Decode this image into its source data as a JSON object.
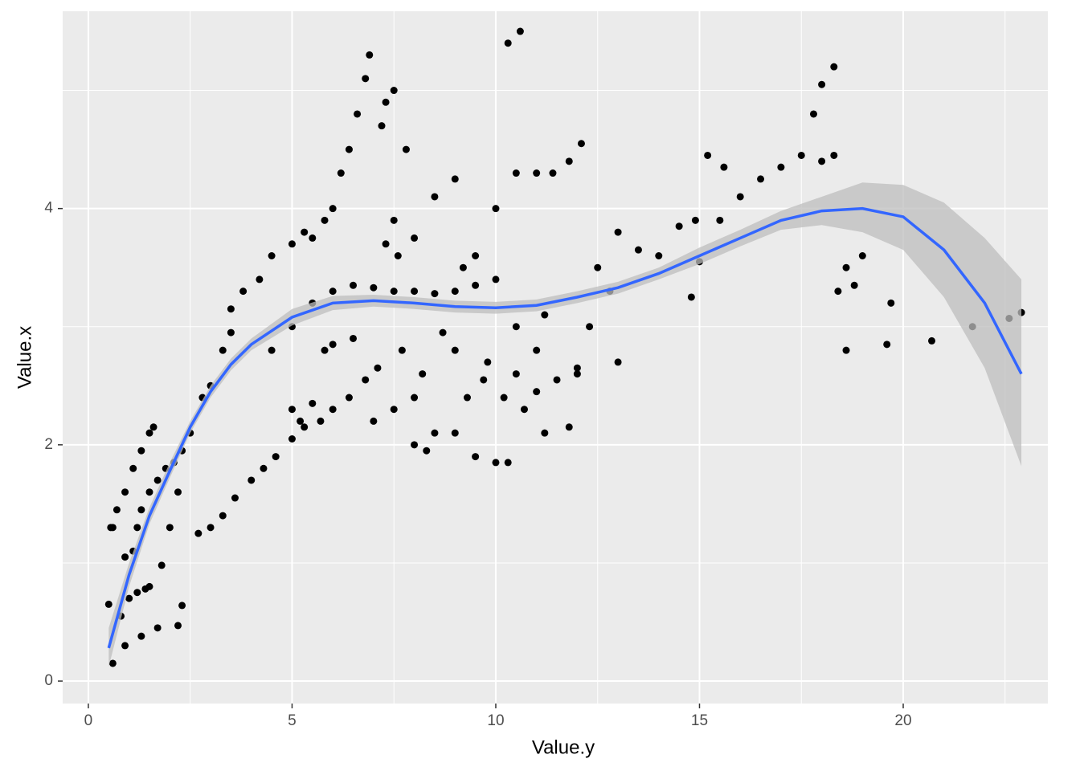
{
  "chart_data": {
    "type": "scatter",
    "x_label": "Value.y",
    "y_label": "Value.x",
    "xlim": [
      -0.63,
      23.55
    ],
    "ylim": [
      -0.19,
      5.67
    ],
    "xticks": [
      0,
      5,
      10,
      15,
      20
    ],
    "yticks": [
      0,
      2,
      4
    ],
    "x_minor_grid": [
      2.5,
      7.5,
      12.5,
      17.5,
      22.5
    ],
    "y_minor_grid": [
      1,
      3,
      5
    ],
    "grid": true,
    "panel_color": "#ebebeb",
    "point_color": "#000000",
    "points": {
      "x": [
        0.5,
        0.6,
        0.8,
        0.9,
        1,
        1.2,
        1.4,
        1.5,
        1.1,
        1.2,
        1.3,
        1.5,
        1.7,
        1.9,
        2.1,
        2.3,
        0.6,
        0.7,
        0.9,
        1.1,
        1.3,
        1.5,
        1.6,
        1.8,
        2,
        2.2,
        1.7,
        2.2,
        2.3,
        1.3,
        0.55,
        0.9,
        2.5,
        2.8,
        3,
        3.3,
        3.5,
        3.5,
        3.8,
        4.2,
        4.5,
        5,
        5.3,
        5.5,
        5.8,
        6,
        6.2,
        6.4,
        6.6,
        6.8,
        6.9,
        7.2,
        7.3,
        7.5,
        7.8,
        2.7,
        3,
        3.3,
        3.6,
        4,
        4.3,
        4.6,
        5,
        5.3,
        5.7,
        6,
        6.4,
        6.8,
        7.1,
        5,
        5.2,
        5.5,
        4.5,
        5,
        5.5,
        6,
        6.5,
        7,
        7.5,
        8,
        8.5,
        9,
        9.5,
        10,
        6.5,
        6,
        5.8,
        7,
        7.5,
        8,
        8.5,
        9,
        9.5,
        10,
        10.3,
        8,
        8.3,
        7.3,
        7.6,
        7.5,
        8,
        8.5,
        9,
        9.2,
        9.5,
        10.3,
        10.6,
        10,
        10.5,
        11,
        11.4,
        11.8,
        12.1,
        10.2,
        10.7,
        11,
        11.5,
        12,
        11.2,
        11.8,
        12,
        12.3,
        12.8,
        13,
        13.5,
        14,
        14.5,
        14.9,
        15.2,
        15.5,
        15.6,
        14.8,
        15,
        16,
        16.5,
        17,
        17.5,
        18,
        18.3,
        17.8,
        18.3,
        18,
        18.4,
        18.6,
        18.8,
        19,
        18.6,
        19.6,
        19.7,
        20.7,
        21.7,
        22.6,
        22.9,
        12.5,
        13,
        11,
        10.5,
        9.8,
        9,
        8.7,
        8.2,
        7.7,
        9.3,
        9.7,
        10.5,
        11.2
      ],
      "values": [
        0.65,
        0.15,
        0.55,
        0.3,
        0.7,
        0.75,
        0.78,
        0.8,
        1.1,
        1.3,
        1.45,
        1.6,
        1.7,
        1.8,
        1.85,
        1.95,
        1.3,
        1.45,
        1.6,
        1.8,
        1.95,
        2.1,
        2.15,
        0.98,
        1.3,
        1.6,
        0.45,
        0.47,
        0.64,
        0.38,
        1.3,
        1.05,
        2.1,
        2.4,
        2.5,
        2.8,
        2.95,
        3.15,
        3.3,
        3.4,
        3.6,
        3.7,
        3.8,
        3.75,
        3.9,
        4,
        4.3,
        4.5,
        4.8,
        5.1,
        5.3,
        4.7,
        4.9,
        5,
        4.5,
        1.25,
        1.3,
        1.4,
        1.55,
        1.7,
        1.8,
        1.9,
        2.05,
        2.15,
        2.2,
        2.3,
        2.4,
        2.55,
        2.65,
        2.3,
        2.2,
        2.35,
        2.8,
        3,
        3.2,
        3.3,
        3.35,
        3.33,
        3.3,
        3.3,
        3.28,
        3.3,
        3.35,
        3.4,
        2.9,
        2.85,
        2.8,
        2.2,
        2.3,
        2.4,
        2.1,
        2.1,
        1.9,
        1.85,
        1.85,
        2,
        1.95,
        3.7,
        3.6,
        3.9,
        3.75,
        4.1,
        4.25,
        3.5,
        3.6,
        5.4,
        5.5,
        4,
        4.3,
        4.3,
        4.3,
        4.4,
        4.55,
        2.4,
        2.3,
        2.45,
        2.55,
        2.65,
        2.1,
        2.15,
        2.6,
        3,
        3.3,
        3.8,
        3.65,
        3.6,
        3.85,
        3.9,
        4.45,
        3.9,
        4.35,
        3.25,
        3.55,
        4.1,
        4.25,
        4.35,
        4.45,
        4.4,
        4.45,
        4.8,
        5.2,
        5.05,
        3.3,
        3.5,
        3.35,
        3.6,
        2.8,
        2.85,
        3.2,
        2.88,
        3,
        3.07,
        3.12,
        3.5,
        2.7,
        2.8,
        2.6,
        2.7,
        2.8,
        2.95,
        2.6,
        2.8,
        2.4,
        2.55,
        3,
        3.1
      ]
    },
    "smooth": {
      "color": "#3366ff",
      "band_color": "#bdbdbd",
      "x": [
        0.5,
        1,
        1.5,
        2,
        2.5,
        3,
        3.5,
        4,
        5,
        6,
        7,
        8,
        9,
        10,
        11,
        12,
        13,
        14,
        15,
        16,
        17,
        18,
        19,
        20,
        21,
        22,
        22.9
      ],
      "values": [
        0.28,
        0.9,
        1.4,
        1.78,
        2.15,
        2.45,
        2.68,
        2.85,
        3.08,
        3.2,
        3.22,
        3.2,
        3.17,
        3.16,
        3.18,
        3.25,
        3.33,
        3.45,
        3.6,
        3.75,
        3.9,
        3.98,
        4,
        3.93,
        3.65,
        3.2,
        2.6
      ],
      "lower": [
        0.12,
        0.8,
        1.33,
        1.72,
        2.1,
        2.4,
        2.63,
        2.8,
        3.01,
        3.14,
        3.17,
        3.15,
        3.12,
        3.11,
        3.13,
        3.2,
        3.28,
        3.4,
        3.53,
        3.68,
        3.82,
        3.86,
        3.8,
        3.65,
        3.25,
        2.65,
        1.82
      ],
      "upper": [
        0.45,
        1.0,
        1.47,
        1.85,
        2.2,
        2.5,
        2.73,
        2.9,
        3.15,
        3.26,
        3.27,
        3.25,
        3.22,
        3.21,
        3.23,
        3.3,
        3.38,
        3.5,
        3.67,
        3.82,
        3.98,
        4.1,
        4.22,
        4.2,
        4.05,
        3.75,
        3.4
      ]
    }
  }
}
